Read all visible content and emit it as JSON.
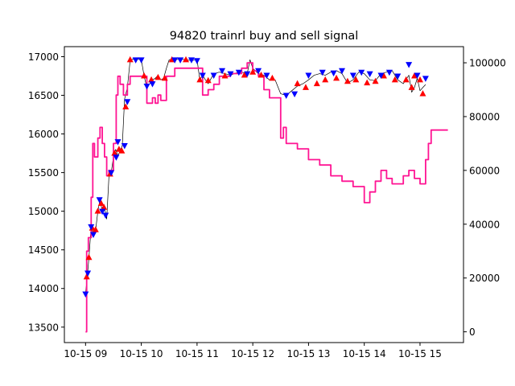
{
  "chart_data": {
    "type": "line",
    "title": "94820 trainrl buy and sell signal",
    "xlabel": "",
    "ylabel": "",
    "x_tick_labels": [
      "10-15 09",
      "10-15 10",
      "10-15 11",
      "10-15 12",
      "10-15 13",
      "10-15 14",
      "10-15 15"
    ],
    "x_ticks_hours": [
      9,
      10,
      11,
      12,
      13,
      14,
      15
    ],
    "xlim_hours": [
      8.62,
      15.78
    ],
    "y_left": {
      "ylim": [
        13300,
        17130
      ],
      "ticks": [
        13500,
        14000,
        14500,
        15000,
        15500,
        16000,
        16500,
        17000
      ],
      "tick_labels": [
        "13500",
        "14000",
        "14500",
        "15000",
        "15500",
        "16000",
        "16500",
        "17000"
      ]
    },
    "y_right": {
      "ylim": [
        -4000,
        106000
      ],
      "ticks": [
        0,
        20000,
        40000,
        60000,
        80000,
        100000
      ],
      "tick_labels": [
        "0",
        "20000",
        "40000",
        "60000",
        "80000",
        "100000"
      ]
    },
    "grid": false,
    "series": [
      {
        "axis": "left",
        "style": "price-line",
        "color": "#000000",
        "points": [
          [
            9.0,
            13930
          ],
          [
            9.03,
            14150
          ],
          [
            9.06,
            14400
          ],
          [
            9.1,
            14800
          ],
          [
            9.14,
            14700
          ],
          [
            9.18,
            14750
          ],
          [
            9.22,
            15000
          ],
          [
            9.26,
            15150
          ],
          [
            9.3,
            15000
          ],
          [
            9.34,
            15050
          ],
          [
            9.38,
            14900
          ],
          [
            9.42,
            15450
          ],
          [
            9.46,
            15500
          ],
          [
            9.5,
            15700
          ],
          [
            9.54,
            15800
          ],
          [
            9.58,
            15720
          ],
          [
            9.62,
            15780
          ],
          [
            9.66,
            15850
          ],
          [
            9.7,
            16450
          ],
          [
            9.75,
            16600
          ],
          [
            9.8,
            16950
          ],
          [
            9.85,
            16970
          ],
          [
            9.9,
            16960
          ],
          [
            9.95,
            16970
          ],
          [
            10.0,
            16960
          ],
          [
            10.05,
            16750
          ],
          [
            10.1,
            16600
          ],
          [
            10.15,
            16650
          ],
          [
            10.2,
            16700
          ],
          [
            10.25,
            16720
          ],
          [
            10.3,
            16760
          ],
          [
            10.35,
            16700
          ],
          [
            10.4,
            16720
          ],
          [
            10.45,
            16850
          ],
          [
            10.5,
            16960
          ],
          [
            10.6,
            16960
          ],
          [
            10.7,
            16970
          ],
          [
            10.8,
            16960
          ],
          [
            10.9,
            16950
          ],
          [
            11.0,
            16960
          ],
          [
            11.05,
            16700
          ],
          [
            11.1,
            16760
          ],
          [
            11.15,
            16700
          ],
          [
            11.2,
            16650
          ],
          [
            11.3,
            16780
          ],
          [
            11.4,
            16800
          ],
          [
            11.5,
            16780
          ],
          [
            11.6,
            16760
          ],
          [
            11.7,
            16790
          ],
          [
            11.8,
            16800
          ],
          [
            11.9,
            16780
          ],
          [
            11.95,
            16960
          ],
          [
            12.0,
            16850
          ],
          [
            12.1,
            16780
          ],
          [
            12.2,
            16760
          ],
          [
            12.3,
            16700
          ],
          [
            12.4,
            16700
          ],
          [
            12.5,
            16520
          ],
          [
            12.6,
            16500
          ],
          [
            12.7,
            16560
          ],
          [
            12.8,
            16620
          ],
          [
            12.9,
            16650
          ],
          [
            13.0,
            16700
          ],
          [
            13.1,
            16760
          ],
          [
            13.2,
            16780
          ],
          [
            13.3,
            16760
          ],
          [
            13.4,
            16800
          ],
          [
            13.5,
            16820
          ],
          [
            13.6,
            16780
          ],
          [
            13.7,
            16660
          ],
          [
            13.8,
            16700
          ],
          [
            13.9,
            16800
          ],
          [
            14.0,
            16780
          ],
          [
            14.1,
            16700
          ],
          [
            14.2,
            16690
          ],
          [
            14.3,
            16780
          ],
          [
            14.4,
            16800
          ],
          [
            14.5,
            16820
          ],
          [
            14.6,
            16700
          ],
          [
            14.7,
            16650
          ],
          [
            14.8,
            16760
          ],
          [
            14.85,
            16540
          ],
          [
            14.9,
            16600
          ],
          [
            14.95,
            16720
          ],
          [
            15.0,
            16560
          ],
          [
            15.05,
            16600
          ],
          [
            15.1,
            16640
          ]
        ]
      },
      {
        "axis": "right",
        "style": "step-line",
        "color": "#ff1493",
        "points": [
          [
            9.0,
            0
          ],
          [
            9.02,
            30000
          ],
          [
            9.05,
            35000
          ],
          [
            9.1,
            50000
          ],
          [
            9.13,
            70000
          ],
          [
            9.16,
            65000
          ],
          [
            9.22,
            72000
          ],
          [
            9.26,
            76000
          ],
          [
            9.3,
            70000
          ],
          [
            9.34,
            65000
          ],
          [
            9.38,
            58000
          ],
          [
            9.42,
            60000
          ],
          [
            9.5,
            70000
          ],
          [
            9.55,
            88000
          ],
          [
            9.58,
            95000
          ],
          [
            9.62,
            92000
          ],
          [
            9.68,
            88000
          ],
          [
            9.75,
            92000
          ],
          [
            9.8,
            95000
          ],
          [
            10.0,
            95000
          ],
          [
            10.1,
            85000
          ],
          [
            10.2,
            87000
          ],
          [
            10.25,
            85000
          ],
          [
            10.3,
            88000
          ],
          [
            10.35,
            86000
          ],
          [
            10.45,
            95000
          ],
          [
            10.6,
            98000
          ],
          [
            10.8,
            98000
          ],
          [
            11.0,
            98000
          ],
          [
            11.1,
            88000
          ],
          [
            11.2,
            90000
          ],
          [
            11.3,
            92000
          ],
          [
            11.4,
            95000
          ],
          [
            11.6,
            96000
          ],
          [
            11.8,
            98000
          ],
          [
            11.9,
            100000
          ],
          [
            12.0,
            97000
          ],
          [
            12.1,
            95000
          ],
          [
            12.2,
            90000
          ],
          [
            12.3,
            87000
          ],
          [
            12.5,
            72000
          ],
          [
            12.55,
            76000
          ],
          [
            12.6,
            70000
          ],
          [
            12.8,
            68000
          ],
          [
            13.0,
            64000
          ],
          [
            13.2,
            62000
          ],
          [
            13.4,
            58000
          ],
          [
            13.6,
            56000
          ],
          [
            13.8,
            54000
          ],
          [
            14.0,
            48000
          ],
          [
            14.1,
            52000
          ],
          [
            14.2,
            56000
          ],
          [
            14.3,
            60000
          ],
          [
            14.4,
            57000
          ],
          [
            14.5,
            55000
          ],
          [
            14.7,
            58000
          ],
          [
            14.8,
            60000
          ],
          [
            14.9,
            57000
          ],
          [
            15.0,
            55000
          ],
          [
            15.1,
            64000
          ],
          [
            15.15,
            70000
          ],
          [
            15.2,
            75000
          ],
          [
            15.5,
            75000
          ]
        ]
      }
    ],
    "buy_signals": {
      "marker": "triangle-up",
      "color": "#ff0000",
      "points": [
        [
          9.02,
          14150
        ],
        [
          9.06,
          14400
        ],
        [
          9.12,
          14780
        ],
        [
          9.18,
          14760
        ],
        [
          9.22,
          15000
        ],
        [
          9.28,
          15100
        ],
        [
          9.33,
          15050
        ],
        [
          9.44,
          15480
        ],
        [
          9.52,
          15750
        ],
        [
          9.6,
          15800
        ],
        [
          9.65,
          15780
        ],
        [
          9.72,
          16350
        ],
        [
          9.8,
          16960
        ],
        [
          10.05,
          16750
        ],
        [
          10.18,
          16700
        ],
        [
          10.3,
          16730
        ],
        [
          10.42,
          16720
        ],
        [
          10.55,
          16960
        ],
        [
          10.8,
          16960
        ],
        [
          11.05,
          16700
        ],
        [
          11.2,
          16690
        ],
        [
          11.5,
          16750
        ],
        [
          11.85,
          16760
        ],
        [
          12.0,
          16800
        ],
        [
          12.15,
          16760
        ],
        [
          12.35,
          16720
        ],
        [
          12.8,
          16650
        ],
        [
          12.95,
          16600
        ],
        [
          13.15,
          16650
        ],
        [
          13.3,
          16700
        ],
        [
          13.5,
          16720
        ],
        [
          13.7,
          16680
        ],
        [
          13.85,
          16700
        ],
        [
          14.05,
          16660
        ],
        [
          14.2,
          16680
        ],
        [
          14.35,
          16750
        ],
        [
          14.55,
          16700
        ],
        [
          14.75,
          16700
        ],
        [
          14.85,
          16600
        ],
        [
          14.9,
          16750
        ],
        [
          15.0,
          16700
        ],
        [
          15.05,
          16520
        ]
      ]
    },
    "sell_signals": {
      "marker": "triangle-down",
      "color": "#0000ff",
      "points": [
        [
          9.0,
          13930
        ],
        [
          9.04,
          14200
        ],
        [
          9.1,
          14800
        ],
        [
          9.14,
          14700
        ],
        [
          9.25,
          15150
        ],
        [
          9.3,
          15000
        ],
        [
          9.36,
          14950
        ],
        [
          9.46,
          15500
        ],
        [
          9.55,
          15700
        ],
        [
          9.58,
          15900
        ],
        [
          9.7,
          15850
        ],
        [
          9.75,
          16420
        ],
        [
          9.9,
          16960
        ],
        [
          10.0,
          16960
        ],
        [
          10.1,
          16620
        ],
        [
          10.2,
          16650
        ],
        [
          10.6,
          16960
        ],
        [
          10.7,
          16960
        ],
        [
          10.9,
          16960
        ],
        [
          11.0,
          16950
        ],
        [
          11.1,
          16760
        ],
        [
          11.3,
          16760
        ],
        [
          11.45,
          16820
        ],
        [
          11.6,
          16780
        ],
        [
          11.75,
          16800
        ],
        [
          11.9,
          16780
        ],
        [
          12.1,
          16820
        ],
        [
          12.25,
          16760
        ],
        [
          12.6,
          16500
        ],
        [
          12.75,
          16520
        ],
        [
          13.0,
          16760
        ],
        [
          13.25,
          16800
        ],
        [
          13.45,
          16790
        ],
        [
          13.6,
          16820
        ],
        [
          13.8,
          16760
        ],
        [
          13.95,
          16800
        ],
        [
          14.1,
          16780
        ],
        [
          14.3,
          16760
        ],
        [
          14.45,
          16800
        ],
        [
          14.6,
          16750
        ],
        [
          14.8,
          16900
        ],
        [
          14.95,
          16760
        ],
        [
          15.1,
          16720
        ]
      ]
    }
  }
}
